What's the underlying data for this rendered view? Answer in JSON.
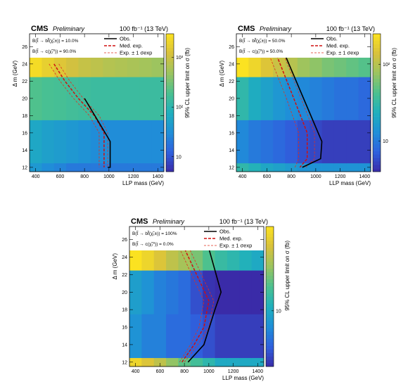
{
  "colormap": [
    "#3a2ba8",
    "#2f61de",
    "#1f8fd8",
    "#1fb0bd",
    "#4cc18f",
    "#9bc460",
    "#d8c13c",
    "#fbe221"
  ],
  "chart_data": [
    {
      "type": "heatmap",
      "experiment": "CMS",
      "status": "Preliminary",
      "lumi_energy": "100 fb⁻¹ (13 TeV)",
      "br_line1": "B(t̃ → bf̃(χ̃₁±)) = 10.0%",
      "br_line2": "B(t̃ → c(χ̃₁⁰)) = 90.0%",
      "xlabel": "LLP mass (GeV)",
      "ylabel": "Δ m (GeV)",
      "zlabel": "95% CL upper limit on σ (fb)",
      "xlim": [
        350,
        1450
      ],
      "ylim": [
        11.5,
        27.5
      ],
      "zlog": true,
      "zrange": [
        5,
        3000
      ],
      "xticks": [
        "400",
        "600",
        "800",
        "1000",
        "1200",
        "1400"
      ],
      "yticks": [
        "12",
        "14",
        "16",
        "18",
        "20",
        "22",
        "24",
        "26"
      ],
      "zticks": [
        {
          "v": 10,
          "label": "10"
        },
        {
          "v": 100,
          "label": "10²"
        },
        {
          "v": 1000,
          "label": "10³"
        }
      ],
      "legend": {
        "obs": "Obs.",
        "exp": "Med. exp.",
        "band": "Exp. ± 1 σexp"
      },
      "x_edges": [
        350,
        450,
        550,
        650,
        750,
        850,
        950,
        1050,
        1150,
        1250,
        1350,
        1450
      ],
      "y_edges": [
        11.5,
        12.5,
        17.5,
        22.5,
        27.5
      ],
      "z": [
        [
          40,
          30,
          25,
          20,
          20,
          20,
          20,
          20,
          20,
          20,
          20
        ],
        [
          60,
          50,
          45,
          40,
          35,
          30,
          30,
          30,
          30,
          30,
          30
        ],
        [
          200,
          180,
          170,
          160,
          150,
          140,
          140,
          140,
          140,
          140,
          140
        ],
        [
          2500,
          1800,
          1400,
          1100,
          900,
          800,
          700,
          650,
          600,
          550,
          500
        ]
      ],
      "observed": {
        "x": [
          800,
          990,
          1010,
          1010,
          990
        ],
        "y": [
          20,
          15.5,
          15,
          12,
          12
        ]
      },
      "expected": {
        "x": [
          550,
          640,
          750,
          880,
          960,
          960,
          960
        ],
        "y": [
          24,
          22,
          20,
          18,
          16,
          14,
          12
        ]
      },
      "band_lo": {
        "x": [
          510,
          600,
          710,
          840,
          920,
          920,
          920
        ],
        "y": [
          24,
          22,
          20,
          18,
          16,
          14,
          12
        ]
      },
      "band_hi": {
        "x": [
          590,
          680,
          790,
          920,
          990,
          990,
          990
        ],
        "y": [
          24,
          22,
          20,
          18,
          16,
          14,
          12
        ]
      }
    },
    {
      "type": "heatmap",
      "experiment": "CMS",
      "status": "Preliminary",
      "lumi_energy": "100 fb⁻¹ (13 TeV)",
      "br_line1": "B(t̃ → bf̃(χ̃₁±)) = 50.0%",
      "br_line2": "B(t̃ → c(χ̃₁⁰)) = 50.0%",
      "xlabel": "LLP mass (GeV)",
      "ylabel": "Δ m (GeV)",
      "zlabel": "95% CL upper limit on σ (fb)",
      "xlim": [
        350,
        1450
      ],
      "ylim": [
        11.5,
        27.5
      ],
      "zlog": true,
      "zrange": [
        4,
        250
      ],
      "xticks": [
        "400",
        "600",
        "800",
        "1000",
        "1200",
        "1400"
      ],
      "yticks": [
        "12",
        "14",
        "16",
        "18",
        "20",
        "22",
        "24",
        "26"
      ],
      "zticks": [
        {
          "v": 10,
          "label": "10"
        },
        {
          "v": 100,
          "label": "10²"
        }
      ],
      "legend": {
        "obs": "Obs.",
        "exp": "Med. exp.",
        "band": "Exp. ± 1 σexp"
      },
      "x_edges": [
        350,
        450,
        550,
        650,
        750,
        850,
        950,
        1050,
        1150,
        1250,
        1350,
        1450
      ],
      "y_edges": [
        11.5,
        12.5,
        17.5,
        22.5,
        27.5
      ],
      "z": [
        [
          30,
          25,
          20,
          18,
          16,
          14,
          14,
          14,
          14,
          14,
          14
        ],
        [
          12,
          10,
          9,
          8,
          7,
          6,
          5.5,
          5,
          5,
          5,
          5
        ],
        [
          30,
          22,
          18,
          15,
          13,
          12,
          11,
          10,
          9,
          9,
          8
        ],
        [
          250,
          200,
          150,
          120,
          100,
          80,
          70,
          60,
          55,
          50,
          45
        ]
      ],
      "observed": {
        "x": [
          750,
          900,
          1050,
          1040,
          890
        ],
        "y": [
          25,
          20,
          15,
          13,
          12
        ]
      },
      "expected": {
        "x": [
          680,
          820,
          930,
          930,
          870
        ],
        "y": [
          25,
          20,
          16,
          13,
          12
        ]
      },
      "band_lo": {
        "x": [
          620,
          760,
          860,
          860,
          830
        ],
        "y": [
          25,
          20,
          16,
          13,
          12
        ]
      },
      "band_hi": {
        "x": [
          740,
          880,
          990,
          990,
          920
        ],
        "y": [
          25,
          20,
          16,
          13,
          12
        ]
      }
    },
    {
      "type": "heatmap",
      "experiment": "CMS",
      "status": "Preliminary",
      "lumi_energy": "100 fb⁻¹ (13 TeV)",
      "br_line1": "B(t̃ → bf̃(χ̃₁±)) = 100%",
      "br_line2": "B(t̃ → c(χ̃₁⁰)) = 0.0%",
      "xlabel": "LLP mass (GeV)",
      "ylabel": "Δ m (GeV)",
      "zlabel": "95% CL upper limit on σ (fb)",
      "xlim": [
        350,
        1450
      ],
      "ylim": [
        11.5,
        27.5
      ],
      "zlog": true,
      "zrange": [
        4,
        40
      ],
      "xticks": [
        "400",
        "600",
        "800",
        "1000",
        "1200",
        "1400"
      ],
      "yticks": [
        "12",
        "14",
        "16",
        "18",
        "20",
        "22",
        "24",
        "26"
      ],
      "zticks": [
        {
          "v": 10,
          "label": "10"
        }
      ],
      "legend": {
        "obs": "Obs.",
        "exp": "Med. exp.",
        "band": "Exp. ± 1 σexp"
      },
      "x_edges": [
        350,
        450,
        550,
        650,
        750,
        850,
        950,
        1050,
        1150,
        1250,
        1350,
        1450
      ],
      "y_edges": [
        11.5,
        12.5,
        17.5,
        22.5,
        27.5
      ],
      "z": [
        [
          35,
          30,
          25,
          20,
          16,
          14,
          12,
          10,
          10,
          10,
          10
        ],
        [
          8,
          7,
          7,
          6,
          6,
          5.5,
          5,
          4.5,
          4.5,
          4.5,
          4.5
        ],
        [
          9,
          8,
          7,
          6.5,
          6,
          5,
          4.2,
          4,
          4,
          4,
          4
        ],
        [
          40,
          35,
          30,
          25,
          22,
          18,
          15,
          13,
          12,
          11,
          10
        ]
      ],
      "observed": {
        "x": [
          830,
          960,
          1050,
          1100,
          1000
        ],
        "y": [
          12,
          14,
          18,
          20,
          25
        ]
      },
      "expected": {
        "x": [
          780,
          880,
          960,
          1000,
          900,
          800
        ],
        "y": [
          12,
          14,
          16,
          19,
          22,
          25
        ]
      },
      "band_lo": {
        "x": [
          760,
          850,
          920,
          960,
          860,
          760
        ],
        "y": [
          12,
          14,
          16,
          19,
          22,
          25
        ]
      },
      "band_hi": {
        "x": [
          800,
          910,
          1000,
          1040,
          940,
          840
        ],
        "y": [
          12,
          14,
          16,
          19,
          22,
          25
        ]
      }
    }
  ]
}
